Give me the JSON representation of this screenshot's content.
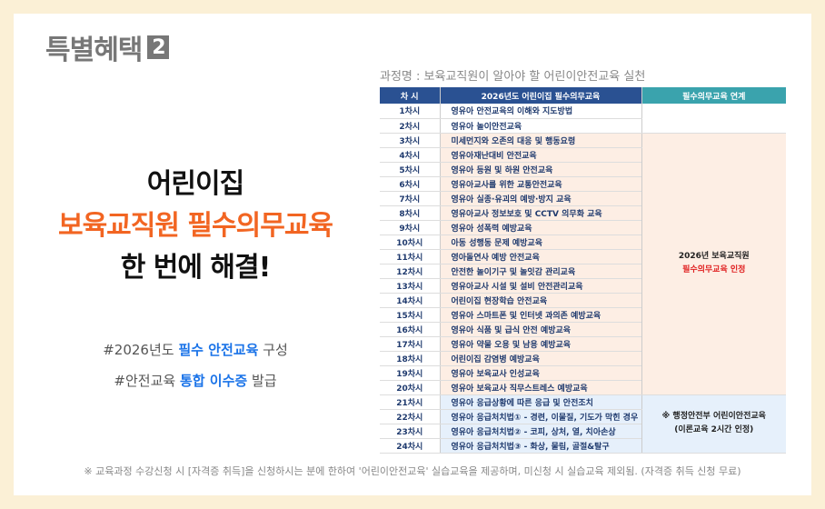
{
  "title": "특별혜택",
  "badge": "2",
  "headline": {
    "line1": "어린이집",
    "line2": "보육교직원 필수의무교육",
    "line3": "한 번에 해결!"
  },
  "tags": [
    {
      "pre": "#2026년도 ",
      "hl": "필수 안전교육",
      "post": " 구성"
    },
    {
      "pre": "#안전교육 ",
      "hl": "통합 이수증",
      "post": " 발급"
    }
  ],
  "course": "과정명 : 보육교직원이 알아야 할 어린이안전교육 실천",
  "table": {
    "headers": [
      "차 시",
      "2026년도 어린이집 필수의무교육",
      "필수의무교육 연계"
    ],
    "rows": [
      [
        "1차시",
        "영유아 안전교육의 이해와 지도방법"
      ],
      [
        "2차시",
        "영유아 놀이안전교육"
      ],
      [
        "3차시",
        "미세먼지와 오존의 대응 및 행동요령"
      ],
      [
        "4차시",
        "영유아재난대비 안전교육"
      ],
      [
        "5차시",
        "영유아 등원 및 하원 안전교육"
      ],
      [
        "6차시",
        "영유아교사를 위한 교통안전교육"
      ],
      [
        "7차시",
        "영유아 실종·유괴의 예방·방지 교육"
      ],
      [
        "8차시",
        "영유아교사 정보보호 및 CCTV 의무화 교육"
      ],
      [
        "9차시",
        "영유아 성폭력 예방교육"
      ],
      [
        "10차시",
        "아동 성행동 문제 예방교육"
      ],
      [
        "11차시",
        "영아돌연사 예방 안전교육"
      ],
      [
        "12차시",
        "안전한 놀이기구 및 놀잇감 관리교육"
      ],
      [
        "13차시",
        "영유아교사 시설 및 설비 안전관리교육"
      ],
      [
        "14차시",
        "어린이집 현장학습 안전교육"
      ],
      [
        "15차시",
        "영유아 스마트폰 및 인터넷 과의존 예방교육"
      ],
      [
        "16차시",
        "영유아 식품 및 급식 안전 예방교육"
      ],
      [
        "17차시",
        "영유아 약물 오용 및 남용 예방교육"
      ],
      [
        "18차시",
        "어린이집 감염병 예방교육"
      ],
      [
        "19차시",
        "영유아 보육교사 인성교육"
      ],
      [
        "20차시",
        "영유아 보육교사 직무스트레스 예방교육"
      ],
      [
        "21차시",
        "영유아 응급상황에 따른 응급 및 안전조치"
      ],
      [
        "22차시",
        "영유아 응급처치법① - 경련, 이물질, 기도가 막힌 경우"
      ],
      [
        "23차시",
        "영유아 응급처치법② - 코피, 상처, 열, 치아손상"
      ],
      [
        "24차시",
        "영유아 응급처치법③ - 화상, 물림, 골절&탈구"
      ]
    ],
    "link1": {
      "line1": "2026년 보육교직원",
      "line2": "필수의무교육 인정"
    },
    "link2": {
      "line1": "※ 행정안전부 어린이안전교육",
      "line2": "(이론교육 2시간 인정)"
    }
  },
  "footnote": "※ 교육과정 수강신청 시 [자격증 취득]을 신청하시는 분에 한하여 '어린이안전교육' 실습교육을 제공하며, 미신청 시 실습교육 제외됨. (자격증 취득 신청 무료)"
}
